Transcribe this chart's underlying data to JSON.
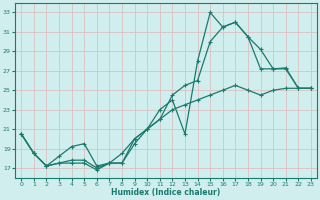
{
  "xlabel": "Humidex (Indice chaleur)",
  "xlim": [
    -0.5,
    23.5
  ],
  "ylim": [
    16.0,
    34.0
  ],
  "yticks": [
    17,
    19,
    21,
    23,
    25,
    27,
    29,
    31,
    33
  ],
  "xticks": [
    0,
    1,
    2,
    3,
    4,
    5,
    6,
    7,
    8,
    9,
    10,
    11,
    12,
    13,
    14,
    15,
    16,
    17,
    18,
    19,
    20,
    21,
    22,
    23
  ],
  "bg_color": "#d0eeee",
  "line_color": "#1a7a6e",
  "grid_color": "#deb8b8",
  "line1_x": [
    0,
    1,
    2,
    3,
    4,
    5,
    6,
    7,
    8,
    9,
    10,
    11,
    12,
    13,
    14,
    15,
    16,
    17,
    18,
    19,
    20,
    21,
    22,
    23
  ],
  "line1_y": [
    20.5,
    18.5,
    17.2,
    17.5,
    17.5,
    17.5,
    16.8,
    17.5,
    17.5,
    19.5,
    21.0,
    23.0,
    24.0,
    20.5,
    28.0,
    33.0,
    31.5,
    32.0,
    30.5,
    29.2,
    27.2,
    27.3,
    25.2,
    25.2
  ],
  "line2_x": [
    0,
    1,
    2,
    3,
    4,
    5,
    6,
    7,
    8,
    9,
    10,
    11,
    12,
    13,
    14,
    15,
    16,
    17,
    18,
    19,
    20,
    21,
    22,
    23
  ],
  "line2_y": [
    20.5,
    18.5,
    17.2,
    17.5,
    17.8,
    17.8,
    17.0,
    17.5,
    17.5,
    20.0,
    21.0,
    22.0,
    24.5,
    25.5,
    26.0,
    30.0,
    31.5,
    32.0,
    30.5,
    27.2,
    27.2,
    27.2,
    25.2,
    25.2
  ],
  "line3_x": [
    0,
    1,
    2,
    3,
    4,
    5,
    6,
    7,
    8,
    9,
    10,
    11,
    12,
    13,
    14,
    15,
    16,
    17,
    18,
    19,
    20,
    21,
    22,
    23
  ],
  "line3_y": [
    20.5,
    18.5,
    17.2,
    18.2,
    19.2,
    19.5,
    17.2,
    17.5,
    18.5,
    20.0,
    21.0,
    22.0,
    23.0,
    23.5,
    24.0,
    24.5,
    25.0,
    25.5,
    25.0,
    24.5,
    25.0,
    25.2,
    25.2,
    25.2
  ]
}
